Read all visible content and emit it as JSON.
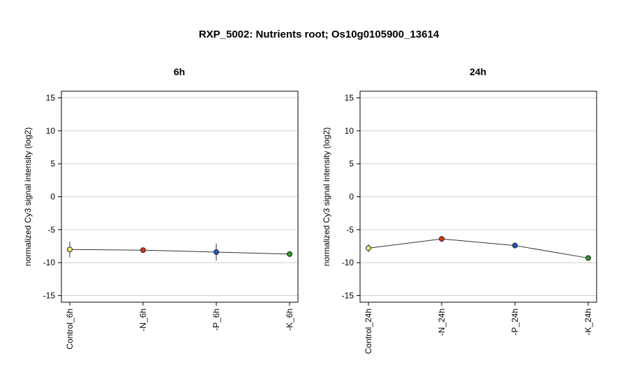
{
  "title": "RXP_5002: Nutrients root; Os10g0105900_13614",
  "chart_data": [
    {
      "type": "line",
      "title": "6h",
      "ylabel": "normalized Cy3 signal intensity (log2)",
      "ylim": [
        -16,
        16
      ],
      "yticks": [
        -15,
        -10,
        -5,
        0,
        5,
        10,
        15
      ],
      "grid": true,
      "categories": [
        "Control_6h",
        "-N_6h",
        "-P_6h",
        "-K_6h"
      ],
      "values": [
        -8.0,
        -8.1,
        -8.4,
        -8.7
      ],
      "errors": [
        1.2,
        0.2,
        1.3,
        0.2
      ],
      "point_colors": [
        "#f2ef6b",
        "#e0321e",
        "#2255cc",
        "#2e9a2e"
      ]
    },
    {
      "type": "line",
      "title": "24h",
      "ylabel": "normalized Cy3 signal intensity (log2)",
      "ylim": [
        -16,
        16
      ],
      "yticks": [
        -15,
        -10,
        -5,
        0,
        5,
        10,
        15
      ],
      "grid": true,
      "categories": [
        "Control_24h",
        "-N_24h",
        "-P_24h",
        "-K_24h"
      ],
      "values": [
        -7.8,
        -6.4,
        -7.4,
        -9.3
      ],
      "errors": [
        0.6,
        0.2,
        0.4,
        0.2
      ],
      "point_colors": [
        "#f2ef6b",
        "#e0321e",
        "#2255cc",
        "#2e9a2e"
      ]
    }
  ]
}
